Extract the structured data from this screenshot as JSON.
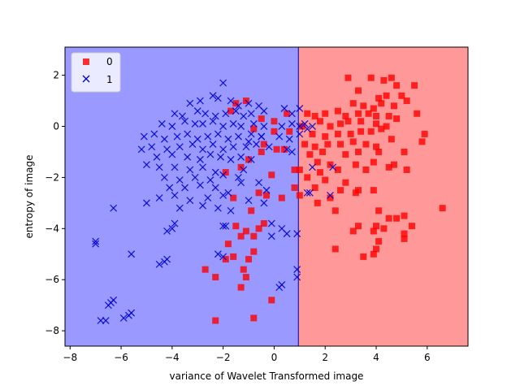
{
  "chart_data": {
    "type": "scatter",
    "title": "",
    "xlabel": "variance of Wavelet Transformed image",
    "ylabel": "entropy of image",
    "xlim": [
      -8.2,
      7.6
    ],
    "ylim": [
      -8.6,
      3.1
    ],
    "xticks": [
      -8,
      -6,
      -4,
      -2,
      0,
      2,
      4,
      6
    ],
    "yticks": [
      -8,
      -6,
      -4,
      -2,
      0,
      2
    ],
    "grid": false,
    "legend": {
      "placement": "top-left",
      "entries": [
        "0",
        "1"
      ]
    },
    "decision_boundary": {
      "x": 0.95,
      "left_region_color": "#9999ff",
      "right_region_color": "#ff9999",
      "line_color": "#0000aa"
    },
    "series": [
      {
        "name": "0",
        "marker": "square",
        "color": "#ff0000",
        "points": [
          [
            2.9,
            1.9
          ],
          [
            3.8,
            1.9
          ],
          [
            4.3,
            1.8
          ],
          [
            4.6,
            1.9
          ],
          [
            4.8,
            1.6
          ],
          [
            5.5,
            1.6
          ],
          [
            3.3,
            1.4
          ],
          [
            4.1,
            1.1
          ],
          [
            4.4,
            1.2
          ],
          [
            5.0,
            1.2
          ],
          [
            5.2,
            1.0
          ],
          [
            3.1,
            0.9
          ],
          [
            3.5,
            0.8
          ],
          [
            3.9,
            0.7
          ],
          [
            4.2,
            0.9
          ],
          [
            4.7,
            0.8
          ],
          [
            2.5,
            0.6
          ],
          [
            1.3,
            0.5
          ],
          [
            1.6,
            0.4
          ],
          [
            2.0,
            0.5
          ],
          [
            2.8,
            0.4
          ],
          [
            3.3,
            0.5
          ],
          [
            3.7,
            0.5
          ],
          [
            4.0,
            0.4
          ],
          [
            4.5,
            0.4
          ],
          [
            5.6,
            0.5
          ],
          [
            1.1,
            0.0
          ],
          [
            1.8,
            0.2
          ],
          [
            2.2,
            0.0
          ],
          [
            2.6,
            0.1
          ],
          [
            2.9,
            0.2
          ],
          [
            3.4,
            0.2
          ],
          [
            4.0,
            0.1
          ],
          [
            4.4,
            0.0
          ],
          [
            4.8,
            0.3
          ],
          [
            1.5,
            -0.3
          ],
          [
            2.0,
            -0.4
          ],
          [
            2.5,
            -0.3
          ],
          [
            3.0,
            -0.3
          ],
          [
            3.4,
            -0.2
          ],
          [
            3.8,
            -0.2
          ],
          [
            4.2,
            -0.1
          ],
          [
            5.9,
            -0.3
          ],
          [
            1.2,
            -0.7
          ],
          [
            1.6,
            -0.8
          ],
          [
            2.1,
            -0.7
          ],
          [
            2.6,
            -0.7
          ],
          [
            3.1,
            -0.6
          ],
          [
            3.6,
            -0.7
          ],
          [
            4.0,
            -0.8
          ],
          [
            4.6,
            -0.5
          ],
          [
            5.8,
            -0.6
          ],
          [
            1.4,
            -1.1
          ],
          [
            1.9,
            -1.0
          ],
          [
            2.8,
            -1.1
          ],
          [
            3.3,
            -1.0
          ],
          [
            4.1,
            -1.0
          ],
          [
            5.1,
            -1.0
          ],
          [
            1.7,
            -1.4
          ],
          [
            2.2,
            -1.5
          ],
          [
            3.2,
            -1.5
          ],
          [
            3.9,
            -1.4
          ],
          [
            4.5,
            -1.6
          ],
          [
            4.7,
            -1.5
          ],
          [
            1.0,
            -1.7
          ],
          [
            1.8,
            -1.8
          ],
          [
            2.5,
            -1.7
          ],
          [
            3.6,
            -1.7
          ],
          [
            5.2,
            -1.7
          ],
          [
            1.3,
            -2.0
          ],
          [
            2.0,
            -2.1
          ],
          [
            2.8,
            -2.2
          ],
          [
            1.6,
            -2.4
          ],
          [
            2.6,
            -2.5
          ],
          [
            3.3,
            -2.5
          ],
          [
            3.9,
            -2.5
          ],
          [
            1.0,
            -2.7
          ],
          [
            2.2,
            -2.8
          ],
          [
            3.2,
            -2.6
          ],
          [
            1.7,
            -3.0
          ],
          [
            2.4,
            -3.3
          ],
          [
            4.1,
            -3.3
          ],
          [
            6.6,
            -3.2
          ],
          [
            4.5,
            -3.6
          ],
          [
            4.8,
            -3.6
          ],
          [
            5.1,
            -3.5
          ],
          [
            3.3,
            -3.9
          ],
          [
            4.0,
            -3.9
          ],
          [
            5.4,
            -3.9
          ],
          [
            3.1,
            -4.1
          ],
          [
            3.9,
            -4.1
          ],
          [
            4.3,
            -4.0
          ],
          [
            5.1,
            -4.2
          ],
          [
            4.1,
            -4.5
          ],
          [
            5.1,
            -4.4
          ],
          [
            4.0,
            -4.8
          ],
          [
            3.5,
            -5.1
          ],
          [
            3.9,
            -5.0
          ],
          [
            2.4,
            -4.8
          ],
          [
            -0.5,
            0.3
          ],
          [
            0.0,
            0.2
          ],
          [
            0.5,
            0.5
          ],
          [
            -0.8,
            -0.1
          ],
          [
            0.0,
            -0.2
          ],
          [
            0.6,
            -0.2
          ],
          [
            -0.4,
            -0.7
          ],
          [
            0.1,
            -0.9
          ],
          [
            0.4,
            -0.9
          ],
          [
            -0.1,
            -1.9
          ],
          [
            0.8,
            -1.7
          ],
          [
            -0.6,
            -2.6
          ],
          [
            -0.3,
            -2.7
          ],
          [
            0.3,
            -2.8
          ],
          [
            0.8,
            -2.4
          ],
          [
            -0.9,
            -3.3
          ],
          [
            -0.4,
            -3.8
          ],
          [
            -0.6,
            -4.0
          ],
          [
            -1.1,
            -4.1
          ],
          [
            -1.5,
            -3.9
          ],
          [
            -1.6,
            -2.8
          ],
          [
            -1.9,
            -1.8
          ],
          [
            -1.3,
            -1.6
          ],
          [
            -1.0,
            -1.3
          ],
          [
            -0.5,
            -1.0
          ],
          [
            -1.5,
            0.9
          ],
          [
            -1.1,
            1.0
          ],
          [
            -1.7,
            0.6
          ],
          [
            -1.3,
            -4.3
          ],
          [
            -0.8,
            -4.3
          ],
          [
            -1.8,
            -4.6
          ],
          [
            -1.9,
            -5.2
          ],
          [
            -1.6,
            -5.1
          ],
          [
            -1.0,
            -5.2
          ],
          [
            -0.8,
            -4.9
          ],
          [
            -1.2,
            -5.6
          ],
          [
            -2.7,
            -5.6
          ],
          [
            -2.3,
            -5.9
          ],
          [
            -1.1,
            -5.9
          ],
          [
            -1.3,
            -6.3
          ],
          [
            -0.1,
            -6.8
          ],
          [
            -0.8,
            -7.5
          ],
          [
            -2.3,
            -7.6
          ]
        ]
      },
      {
        "name": "1",
        "marker": "x",
        "color": "#0000cc",
        "points": [
          [
            -2.0,
            1.7
          ],
          [
            -2.4,
            1.2
          ],
          [
            -2.2,
            1.1
          ],
          [
            -3.3,
            0.9
          ],
          [
            -2.9,
            1.0
          ],
          [
            -1.7,
            1.0
          ],
          [
            -1.4,
            0.8
          ],
          [
            -1.0,
            0.9
          ],
          [
            -0.6,
            0.8
          ],
          [
            -3.9,
            0.5
          ],
          [
            -3.6,
            0.4
          ],
          [
            -3.0,
            0.6
          ],
          [
            -2.7,
            0.5
          ],
          [
            -2.3,
            0.4
          ],
          [
            -1.9,
            0.5
          ],
          [
            -1.5,
            0.6
          ],
          [
            -1.2,
            0.4
          ],
          [
            -0.9,
            0.5
          ],
          [
            -0.4,
            0.6
          ],
          [
            0.4,
            0.7
          ],
          [
            0.7,
            0.5
          ],
          [
            1.0,
            0.7
          ],
          [
            -4.4,
            0.1
          ],
          [
            -4.0,
            0.0
          ],
          [
            -3.5,
            0.2
          ],
          [
            -3.1,
            0.1
          ],
          [
            -2.8,
            0.1
          ],
          [
            -2.4,
            0.2
          ],
          [
            -2.0,
            0.0
          ],
          [
            -1.6,
            0.1
          ],
          [
            -1.3,
            0.0
          ],
          [
            -0.8,
            0.1
          ],
          [
            -0.4,
            0.0
          ],
          [
            0.3,
            0.0
          ],
          [
            0.7,
            0.1
          ],
          [
            1.2,
            0.1
          ],
          [
            1.5,
            0.0
          ],
          [
            -5.1,
            -0.4
          ],
          [
            -4.7,
            -0.3
          ],
          [
            -4.3,
            -0.5
          ],
          [
            -3.8,
            -0.4
          ],
          [
            -3.4,
            -0.3
          ],
          [
            -3.0,
            -0.5
          ],
          [
            -2.6,
            -0.4
          ],
          [
            -2.2,
            -0.3
          ],
          [
            -1.8,
            -0.5
          ],
          [
            -1.4,
            -0.4
          ],
          [
            -1.0,
            -0.6
          ],
          [
            -0.5,
            -0.4
          ],
          [
            0.2,
            -0.4
          ],
          [
            0.6,
            -0.5
          ],
          [
            1.0,
            -0.3
          ],
          [
            -5.2,
            -0.9
          ],
          [
            -4.8,
            -0.8
          ],
          [
            -4.2,
            -0.9
          ],
          [
            -3.7,
            -0.8
          ],
          [
            -3.2,
            -0.7
          ],
          [
            -2.8,
            -0.9
          ],
          [
            -2.4,
            -0.7
          ],
          [
            -2.0,
            -0.9
          ],
          [
            -1.6,
            -0.8
          ],
          [
            -1.1,
            -0.8
          ],
          [
            -0.7,
            -0.7
          ],
          [
            -0.2,
            -0.8
          ],
          [
            -4.6,
            -1.2
          ],
          [
            -4.0,
            -1.1
          ],
          [
            -3.4,
            -1.2
          ],
          [
            -2.9,
            -1.3
          ],
          [
            -2.5,
            -1.1
          ],
          [
            -2.1,
            -1.2
          ],
          [
            -1.7,
            -1.3
          ],
          [
            -1.3,
            -1.2
          ],
          [
            -0.9,
            -1.3
          ],
          [
            -5.0,
            -1.5
          ],
          [
            -4.5,
            -1.6
          ],
          [
            -3.9,
            -1.6
          ],
          [
            -3.3,
            -1.7
          ],
          [
            -2.8,
            -1.6
          ],
          [
            -2.3,
            -1.8
          ],
          [
            -1.2,
            -1.7
          ],
          [
            -4.3,
            -2.0
          ],
          [
            -3.7,
            -2.1
          ],
          [
            -3.1,
            -2.0
          ],
          [
            -2.5,
            -2.1
          ],
          [
            -2.0,
            -1.9
          ],
          [
            -1.4,
            -2.0
          ],
          [
            -0.6,
            -2.2
          ],
          [
            -4.1,
            -2.4
          ],
          [
            -3.5,
            -2.4
          ],
          [
            -2.9,
            -2.3
          ],
          [
            -2.3,
            -2.4
          ],
          [
            -1.8,
            -2.6
          ],
          [
            -1.3,
            -2.2
          ],
          [
            -0.3,
            -2.5
          ],
          [
            -4.5,
            -2.8
          ],
          [
            -3.9,
            -2.7
          ],
          [
            -3.3,
            -2.9
          ],
          [
            -2.6,
            -2.8
          ],
          [
            -2.0,
            -2.7
          ],
          [
            -1.0,
            -2.9
          ],
          [
            -0.4,
            -3.0
          ],
          [
            -5.0,
            -3.0
          ],
          [
            -3.7,
            -3.2
          ],
          [
            -2.8,
            -3.1
          ],
          [
            -2.2,
            -3.2
          ],
          [
            -1.7,
            -3.3
          ],
          [
            -6.3,
            -3.2
          ],
          [
            -3.9,
            -3.8
          ],
          [
            -4.0,
            -4.0
          ],
          [
            -4.2,
            -4.1
          ],
          [
            -2.0,
            -3.9
          ],
          [
            -1.9,
            -3.9
          ],
          [
            -0.1,
            -3.8
          ],
          [
            0.3,
            -4.0
          ],
          [
            0.5,
            -4.2
          ],
          [
            0.9,
            -4.2
          ],
          [
            -0.1,
            -4.3
          ],
          [
            -7.0,
            -4.6
          ],
          [
            -7.0,
            -4.5
          ],
          [
            -5.6,
            -5.0
          ],
          [
            -4.2,
            -5.2
          ],
          [
            -4.3,
            -5.3
          ],
          [
            -4.5,
            -5.4
          ],
          [
            -2.2,
            -5.0
          ],
          [
            -2.0,
            -5.1
          ],
          [
            0.9,
            -5.6
          ],
          [
            0.9,
            -5.9
          ],
          [
            0.3,
            -6.2
          ],
          [
            0.2,
            -6.3
          ],
          [
            -6.4,
            -6.9
          ],
          [
            -6.3,
            -6.8
          ],
          [
            -6.5,
            -7.0
          ],
          [
            -5.6,
            -7.3
          ],
          [
            -5.7,
            -7.4
          ],
          [
            -5.9,
            -7.5
          ],
          [
            -6.6,
            -7.6
          ],
          [
            -6.8,
            -7.6
          ],
          [
            2.2,
            -2.7
          ],
          [
            1.4,
            -2.6
          ],
          [
            1.3,
            -2.6
          ],
          [
            1.0,
            0.0
          ],
          [
            1.3,
            -0.1
          ],
          [
            -0.9,
            -0.3
          ],
          [
            -0.5,
            -0.4
          ],
          [
            0.5,
            -0.9
          ],
          [
            0.7,
            -1.0
          ],
          [
            1.5,
            -1.6
          ],
          [
            2.3,
            -1.6
          ]
        ]
      }
    ]
  }
}
